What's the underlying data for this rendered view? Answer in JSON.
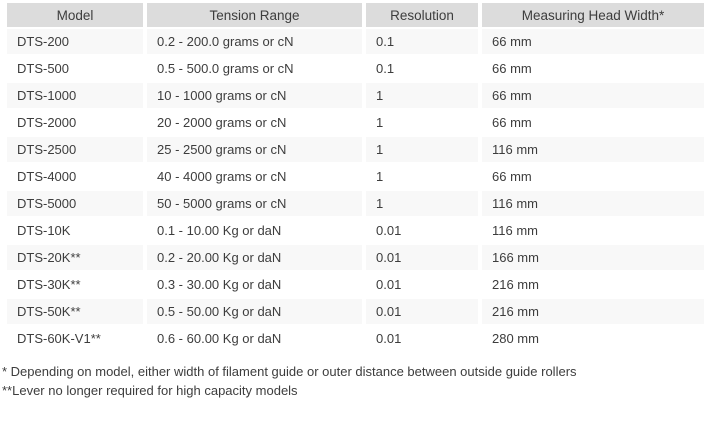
{
  "table": {
    "headers": [
      "Model",
      "Tension Range",
      "Resolution",
      "Measuring Head Width*"
    ],
    "rows": [
      {
        "model": "DTS-200",
        "tension_range": "0.2 - 200.0 grams or cN",
        "resolution": "0.1",
        "head_width": "66 mm"
      },
      {
        "model": "DTS-500",
        "tension_range": "0.5 - 500.0 grams or cN",
        "resolution": "0.1",
        "head_width": "66 mm"
      },
      {
        "model": "DTS-1000",
        "tension_range": "10 - 1000 grams or cN",
        "resolution": "1",
        "head_width": "66 mm"
      },
      {
        "model": "DTS-2000",
        "tension_range": "20 - 2000 grams or cN",
        "resolution": "1",
        "head_width": "66 mm"
      },
      {
        "model": "DTS-2500",
        "tension_range": "25 - 2500 grams or cN",
        "resolution": "1",
        "head_width": "116 mm"
      },
      {
        "model": "DTS-4000",
        "tension_range": "40 - 4000 grams or cN",
        "resolution": "1",
        "head_width": "66 mm"
      },
      {
        "model": "DTS-5000",
        "tension_range": "50 - 5000 grams or cN",
        "resolution": "1",
        "head_width": "116 mm"
      },
      {
        "model": "DTS-10K",
        "tension_range": "0.1 - 10.00 Kg or daN",
        "resolution": "0.01",
        "head_width": "116 mm"
      },
      {
        "model": "DTS-20K**",
        "tension_range": "0.2 - 20.00 Kg or daN",
        "resolution": "0.01",
        "head_width": "166 mm"
      },
      {
        "model": "DTS-30K**",
        "tension_range": "0.3 - 30.00 Kg or daN",
        "resolution": "0.01",
        "head_width": "216 mm"
      },
      {
        "model": "DTS-50K**",
        "tension_range": "0.5 - 50.00 Kg or daN",
        "resolution": "0.01",
        "head_width": "216 mm"
      },
      {
        "model": "DTS-60K-V1**",
        "tension_range": "0.6 - 60.00 Kg or daN",
        "resolution": "0.01",
        "head_width": "280 mm"
      }
    ]
  },
  "footnotes": [
    "* Depending on model, either width of filament guide or outer distance between outside guide rollers",
    "**Lever no longer required for high capacity models"
  ],
  "colors": {
    "header_bg": "#dcdcdc",
    "row_stripe_bg": "#f8f8f8",
    "text": "#3d3d3d",
    "divider": "#ffffff"
  }
}
